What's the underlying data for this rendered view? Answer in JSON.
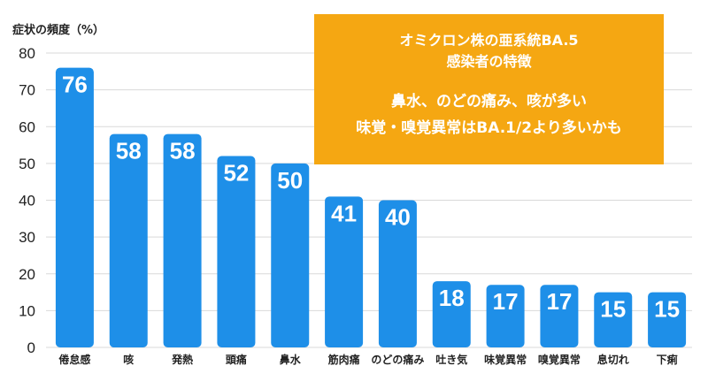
{
  "chart_data": {
    "type": "bar",
    "ylabel": "症状の頻度（%）",
    "ylim": [
      0,
      80
    ],
    "yticks": [
      "0",
      "10",
      "20",
      "30",
      "40",
      "50",
      "60",
      "70",
      "80"
    ],
    "categories": [
      "倦怠感",
      "咳",
      "発熱",
      "頭痛",
      "鼻水",
      "筋肉痛",
      "のどの痛み",
      "吐き気",
      "味覚異常",
      "嗅覚異常",
      "息切れ",
      "下痢"
    ],
    "values": [
      76,
      58,
      58,
      52,
      50,
      41,
      40,
      18,
      17,
      17,
      15,
      15
    ],
    "bar_color": "#1e8fe8",
    "grid": true
  },
  "annotation": {
    "title_line1": "オミクロン株の亜系統BA.5",
    "title_line2": "感染者の特徴",
    "body_line1": "鼻水、のどの痛み、咳が多い",
    "body_line2": "味覚・嗅覚異常はBA.1/2より多いかも",
    "bg_color": "#f5a712"
  }
}
